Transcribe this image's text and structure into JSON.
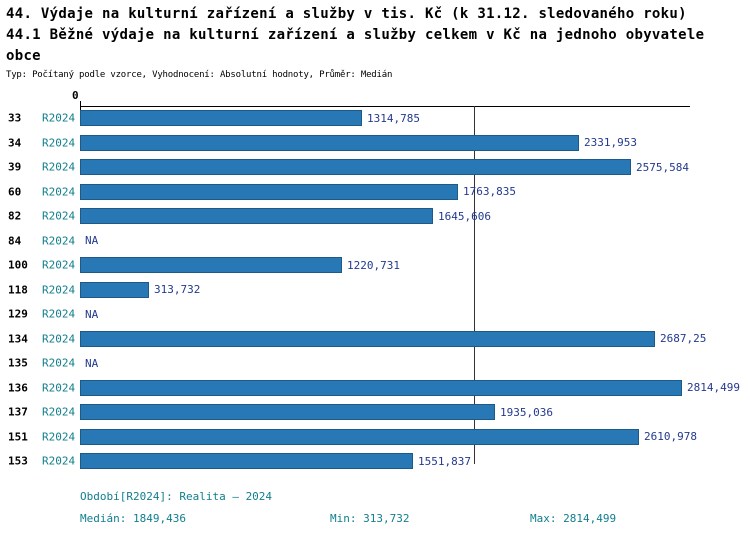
{
  "header": {
    "title1": "44. Výdaje na kulturní zařízení a služby v tis. Kč (k 31.12. sledovaného roku)",
    "title2": "44.1 Běžné výdaje na kulturní zařízení a služby celkem v Kč na jednoho obyvatele obce",
    "meta": "Typ: Počítaný podle vzorce, Vyhodnocení: Absolutní hodnoty, Průměr: Medián"
  },
  "chart_data": {
    "type": "bar",
    "orientation": "horizontal",
    "title": "",
    "xlabel": "",
    "ylabel": "",
    "x_axis": {
      "position": "top",
      "zero_label": "0",
      "min": 0,
      "max": 2814.499
    },
    "median_line_value": 1849.436,
    "grid": false,
    "legend": "none",
    "categories": [
      "33",
      "34",
      "39",
      "60",
      "82",
      "84",
      "100",
      "118",
      "129",
      "134",
      "135",
      "136",
      "137",
      "151",
      "153"
    ],
    "series_period": "R2024",
    "rows": [
      {
        "id": "33",
        "period": "R2024",
        "value": 1314.785,
        "display": "1314,785"
      },
      {
        "id": "34",
        "period": "R2024",
        "value": 2331.953,
        "display": "2331,953"
      },
      {
        "id": "39",
        "period": "R2024",
        "value": 2575.584,
        "display": "2575,584"
      },
      {
        "id": "60",
        "period": "R2024",
        "value": 1763.835,
        "display": "1763,835"
      },
      {
        "id": "82",
        "period": "R2024",
        "value": 1645.606,
        "display": "1645,606"
      },
      {
        "id": "84",
        "period": "R2024",
        "value": null,
        "display": "NA"
      },
      {
        "id": "100",
        "period": "R2024",
        "value": 1220.731,
        "display": "1220,731"
      },
      {
        "id": "118",
        "period": "R2024",
        "value": 313.732,
        "display": "313,732"
      },
      {
        "id": "129",
        "period": "R2024",
        "value": null,
        "display": "NA"
      },
      {
        "id": "134",
        "period": "R2024",
        "value": 2687.25,
        "display": "2687,25"
      },
      {
        "id": "135",
        "period": "R2024",
        "value": null,
        "display": "NA"
      },
      {
        "id": "136",
        "period": "R2024",
        "value": 2814.499,
        "display": "2814,499"
      },
      {
        "id": "137",
        "period": "R2024",
        "value": 1935.036,
        "display": "1935,036"
      },
      {
        "id": "151",
        "period": "R2024",
        "value": 2610.978,
        "display": "2610,978"
      },
      {
        "id": "153",
        "period": "R2024",
        "value": 1551.837,
        "display": "1551,837"
      }
    ]
  },
  "footer": {
    "period": "Období[R2024]: Realita – 2024",
    "median": "Medián: 1849,436",
    "min": "Min: 313,732",
    "max": "Max: 2814,499"
  },
  "colors": {
    "bar": "#2878b5",
    "teal_text": "#117e8e",
    "value_text": "#233a8f",
    "axis": "#000000"
  }
}
